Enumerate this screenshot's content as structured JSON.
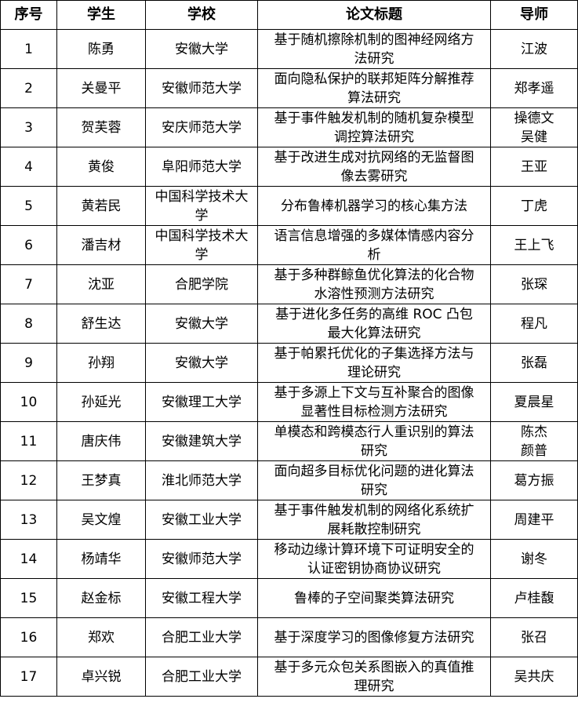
{
  "table": {
    "header": [
      "序号",
      "学生",
      "学校",
      "论文标题",
      "导师"
    ],
    "rows": [
      [
        "1",
        "陈勇",
        "安徽大学",
        "基于随机擦除机制的图神经网络方法研究",
        "江波"
      ],
      [
        "2",
        "关曼平",
        "安徽师范大学",
        "面向隐私保护的联邦矩阵分解推荐算法研究",
        "郑孝遥"
      ],
      [
        "3",
        "贺芙蓉",
        "安庆师范大学",
        "基于事件触发机制的随机复杂模型调控算法研究",
        "操德文\n吴健"
      ],
      [
        "4",
        "黄俊",
        "阜阳师范大学",
        "基于改进生成对抗网络的无监督图像去雾研究",
        "王亚"
      ],
      [
        "5",
        "黄若民",
        "中国科学技术大学",
        "分布鲁棒机器学习的核心集方法",
        "丁虎"
      ],
      [
        "6",
        "潘吉材",
        "中国科学技术大学",
        "语言信息增强的多媒体情感内容分析",
        "王上飞"
      ],
      [
        "7",
        "沈亚",
        "合肥学院",
        "基于多种群鲸鱼优化算法的化合物水溶性预测方法研究",
        "张琛"
      ],
      [
        "8",
        "舒生达",
        "安徽大学",
        "基于进化多任务的高维 ROC 凸包最大化算法研究",
        "程凡"
      ],
      [
        "9",
        "孙翔",
        "安徽大学",
        "基于帕累托优化的子集选择方法与理论研究",
        "张磊"
      ],
      [
        "10",
        "孙延光",
        "安徽理工大学",
        "基于多源上下文与互补聚合的图像显著性目标检测方法研究",
        "夏晨星"
      ],
      [
        "11",
        "唐庆伟",
        "安徽建筑大学",
        "单模态和跨模态行人重识别的算法研究",
        "陈杰\n颜普"
      ],
      [
        "12",
        "王梦真",
        "淮北师范大学",
        "面向超多目标优化问题的进化算法研究",
        "葛方振"
      ],
      [
        "13",
        "吴文煌",
        "安徽工业大学",
        "基于事件触发机制的网络化系统扩展耗散控制研究",
        "周建平"
      ],
      [
        "14",
        "杨靖华",
        "安徽师范大学",
        "移动边缘计算环境下可证明安全的认证密钥协商协议研究",
        "谢冬"
      ],
      [
        "15",
        "赵金标",
        "安徽工程大学",
        "鲁棒的子空间聚类算法研究",
        "卢桂馥"
      ],
      [
        "16",
        "郑欢",
        "合肥工业大学",
        "基于深度学习的图像修复方法研究",
        "张召"
      ],
      [
        "17",
        "卓兴锐",
        "合肥工业大学",
        "基于多元众包关系图嵌入的真值推理研究",
        "吴共庆"
      ]
    ]
  }
}
